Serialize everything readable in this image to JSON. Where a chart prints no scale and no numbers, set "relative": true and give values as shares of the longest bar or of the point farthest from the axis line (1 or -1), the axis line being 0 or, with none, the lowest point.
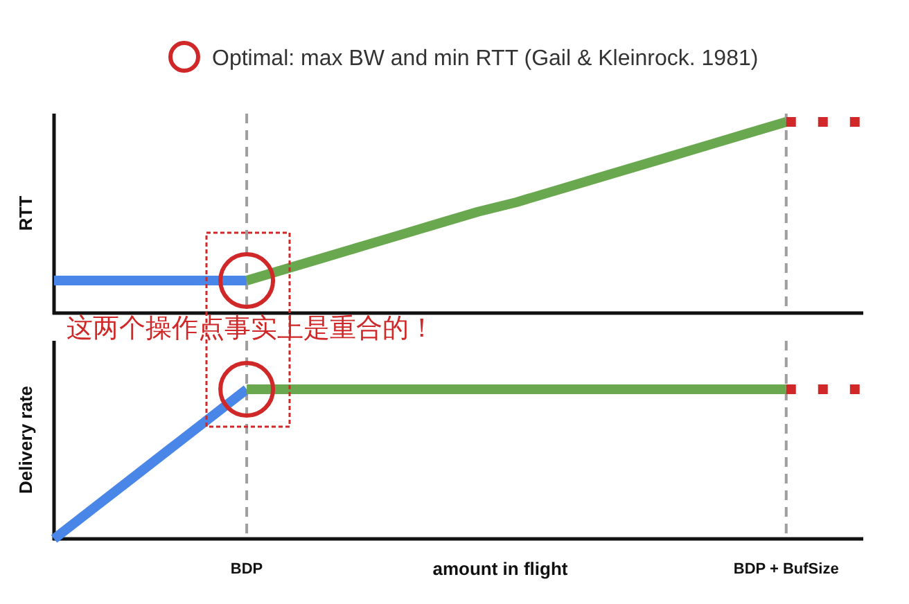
{
  "chart_data": [
    {
      "type": "line",
      "relative": true,
      "ylabel": "RTT",
      "tick_labels": false,
      "legend": "top",
      "annotations": [
        "这两个操作点事实上是重合的！"
      ],
      "categories": [
        null,
        null,
        null,
        null,
        null,
        "BDP",
        null,
        null,
        null,
        null,
        null,
        null,
        null,
        null,
        null,
        null,
        null,
        null,
        null,
        "BDP + BufSize",
        null,
        null
      ],
      "ref_lines": [
        {
          "axis": "x",
          "value": "BDP",
          "color": "#9e9e9e",
          "line_style": "dashed"
        },
        {
          "axis": "x",
          "value": "BDP + BufSize",
          "color": "#9e9e9e",
          "line_style": "dashed"
        }
      ],
      "series": [
        {
          "color": "#4a86e8",
          "values": [
            0.17,
            0.17,
            0.17,
            0.17,
            0.17,
            0.17,
            null,
            null,
            null,
            null,
            null,
            null,
            null,
            null,
            null,
            null,
            null,
            null,
            null,
            null,
            null,
            null
          ]
        },
        {
          "color": "#6aa84f",
          "values": [
            null,
            null,
            null,
            null,
            null,
            0.17,
            0.23,
            0.29,
            0.35,
            0.41,
            0.47,
            0.53,
            0.58,
            0.64,
            0.7,
            0.76,
            0.82,
            0.88,
            0.94,
            1,
            null,
            null
          ]
        },
        {
          "color": "#d02828",
          "values": [
            null,
            null,
            null,
            null,
            null,
            null,
            null,
            null,
            null,
            null,
            null,
            null,
            null,
            null,
            null,
            null,
            null,
            null,
            null,
            1,
            1,
            1
          ],
          "line_style": "dotted"
        },
        {
          "type": "scatter",
          "name": "Optimal: max BW and min RTT (Gail & Kleinrock. 1981)",
          "color": "#d02828",
          "values": [
            null,
            null,
            null,
            null,
            null,
            0.17,
            null,
            null,
            null,
            null,
            null,
            null,
            null,
            null,
            null,
            null,
            null,
            null,
            null,
            null,
            null,
            null
          ],
          "marker": "circle"
        }
      ]
    },
    {
      "type": "line",
      "relative": true,
      "ylabel": "Delivery rate",
      "xlabel": "amount in flight",
      "tick_labels": "x",
      "categories": [
        null,
        null,
        null,
        null,
        null,
        "BDP",
        null,
        null,
        null,
        null,
        null,
        null,
        null,
        null,
        null,
        null,
        null,
        null,
        null,
        "BDP + BufSize",
        null,
        null
      ],
      "ref_lines": [
        {
          "axis": "x",
          "value": "BDP",
          "color": "#9e9e9e",
          "line_style": "dashed"
        },
        {
          "axis": "x",
          "value": "BDP + BufSize",
          "color": "#9e9e9e",
          "line_style": "dashed"
        }
      ],
      "series": [
        {
          "color": "#4a86e8",
          "values": [
            0,
            0.2,
            0.4,
            0.6,
            0.8,
            1,
            null,
            null,
            null,
            null,
            null,
            null,
            null,
            null,
            null,
            null,
            null,
            null,
            null,
            null,
            null,
            null
          ]
        },
        {
          "color": "#6aa84f",
          "values": [
            null,
            null,
            null,
            null,
            null,
            1,
            1,
            1,
            1,
            1,
            1,
            1,
            1,
            1,
            1,
            1,
            1,
            1,
            1,
            1,
            null,
            null
          ]
        },
        {
          "color": "#d02828",
          "values": [
            null,
            null,
            null,
            null,
            null,
            null,
            null,
            null,
            null,
            null,
            null,
            null,
            null,
            null,
            null,
            null,
            null,
            null,
            null,
            1,
            1,
            1
          ],
          "line_style": "dotted"
        },
        {
          "type": "scatter",
          "color": "#d02828",
          "values": [
            null,
            null,
            null,
            null,
            null,
            1,
            null,
            null,
            null,
            null,
            null,
            null,
            null,
            null,
            null,
            null,
            null,
            null,
            null,
            null,
            null,
            null
          ],
          "marker": "circle"
        }
      ]
    }
  ]
}
